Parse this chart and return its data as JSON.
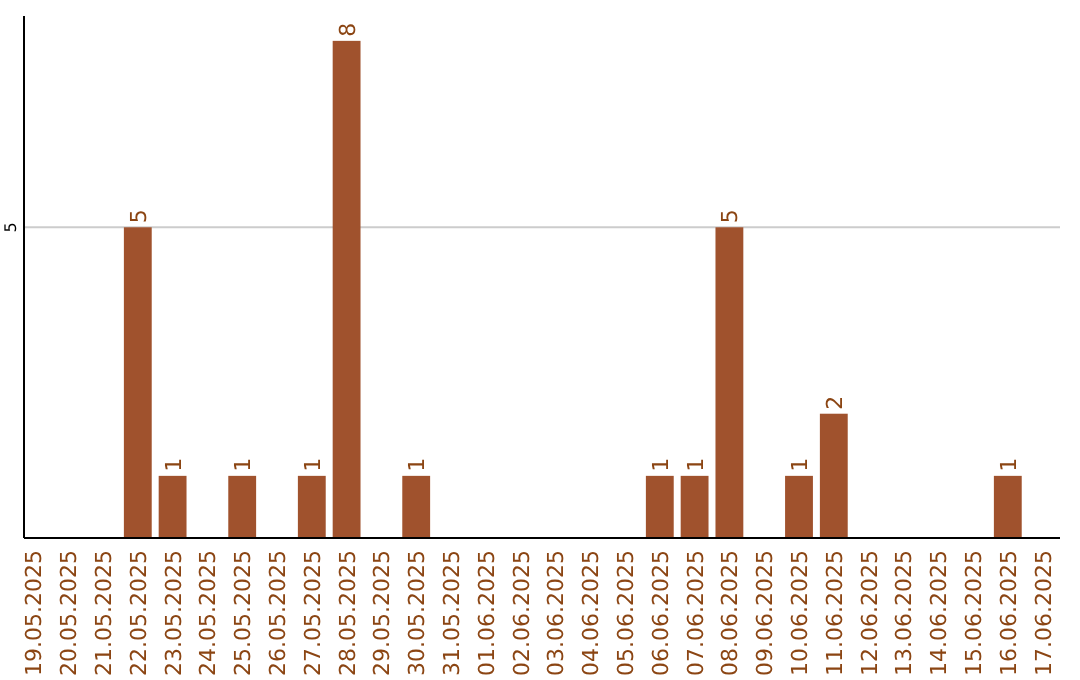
{
  "chart_data": {
    "type": "bar",
    "categories": [
      "19.05.2025",
      "20.05.2025",
      "21.05.2025",
      "22.05.2025",
      "23.05.2025",
      "24.05.2025",
      "25.05.2025",
      "26.05.2025",
      "27.05.2025",
      "28.05.2025",
      "29.05.2025",
      "30.05.2025",
      "31.05.2025",
      "01.06.2025",
      "02.06.2025",
      "03.06.2025",
      "04.06.2025",
      "05.06.2025",
      "06.06.2025",
      "07.06.2025",
      "08.06.2025",
      "09.06.2025",
      "10.06.2025",
      "11.06.2025",
      "12.06.2025",
      "13.06.2025",
      "14.06.2025",
      "15.06.2025",
      "16.06.2025",
      "17.06.2025"
    ],
    "values": [
      0,
      0,
      0,
      5,
      1,
      0,
      1,
      0,
      1,
      8,
      0,
      1,
      0,
      0,
      0,
      0,
      0,
      0,
      1,
      1,
      5,
      0,
      1,
      2,
      0,
      0,
      0,
      0,
      1,
      0
    ],
    "value_labels": [
      null,
      null,
      null,
      "5",
      "1",
      null,
      "1",
      null,
      "1",
      "8",
      null,
      "1",
      null,
      null,
      null,
      null,
      null,
      null,
      "1",
      "1",
      "5",
      null,
      "1",
      "2",
      null,
      null,
      null,
      null,
      "1",
      null
    ],
    "color": "#a0522d",
    "ylim": [
      0,
      8.4
    ],
    "yticks": [
      5
    ],
    "grid": "y"
  }
}
